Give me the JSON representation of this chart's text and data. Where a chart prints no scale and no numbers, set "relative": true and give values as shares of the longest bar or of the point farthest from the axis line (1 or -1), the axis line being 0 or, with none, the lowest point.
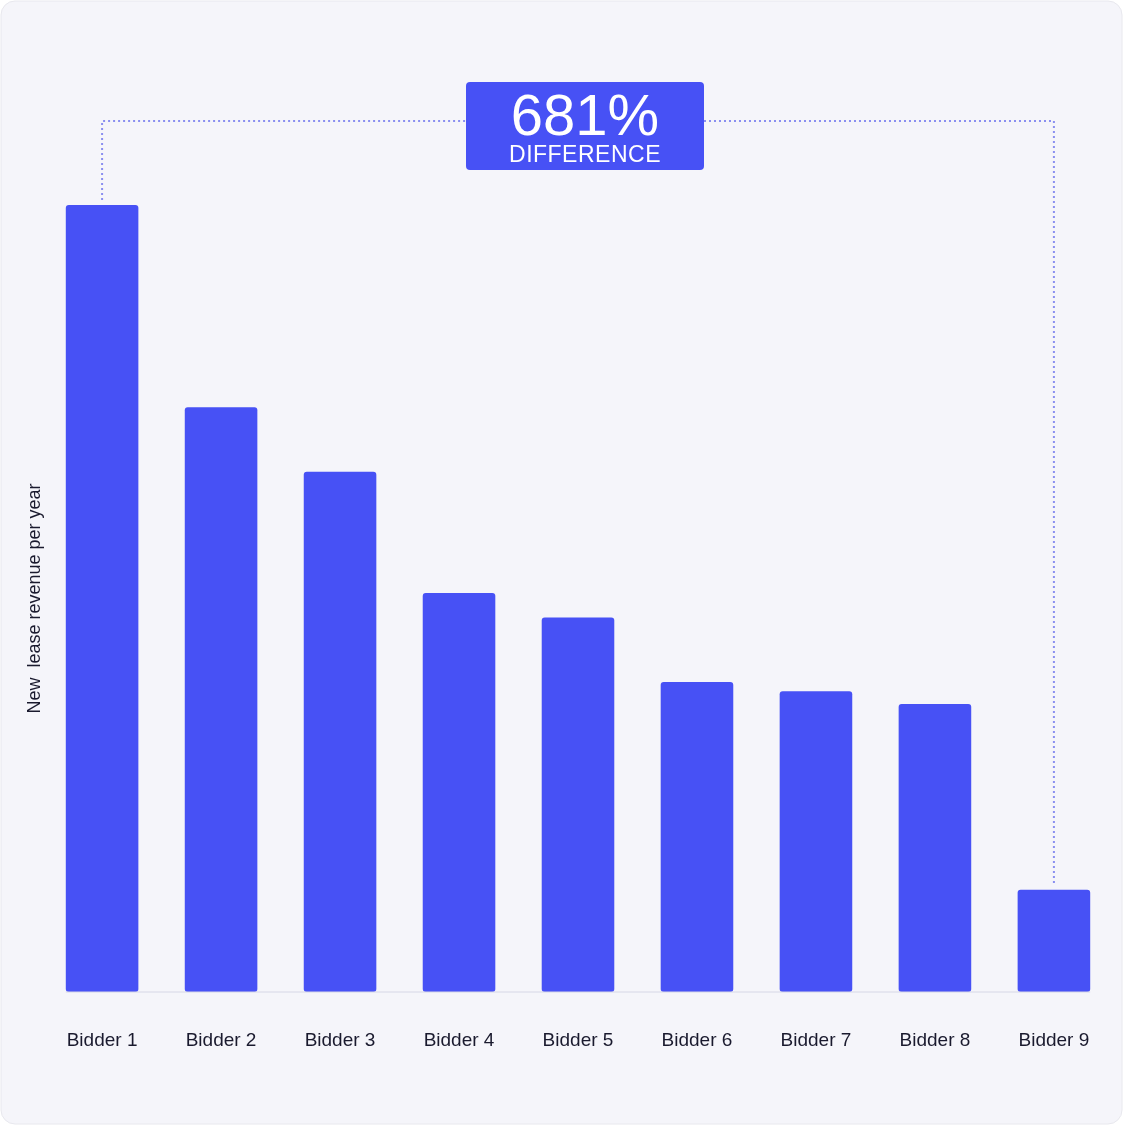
{
  "chart_data": {
    "type": "bar",
    "relative": true,
    "ylabel": "New  lease revenue per year",
    "categories": [
      "Bidder 1",
      "Bidder 2",
      "Bidder 3",
      "Bidder 4",
      "Bidder 5",
      "Bidder 6",
      "Bidder 7",
      "Bidder 8",
      "Bidder 9"
    ],
    "values": [
      1,
      0.743,
      0.661,
      0.507,
      0.476,
      0.394,
      0.382,
      0.366,
      0.13
    ],
    "color": "#4751f5",
    "annotations": [
      "681%",
      "DIFFERENCE"
    ]
  }
}
